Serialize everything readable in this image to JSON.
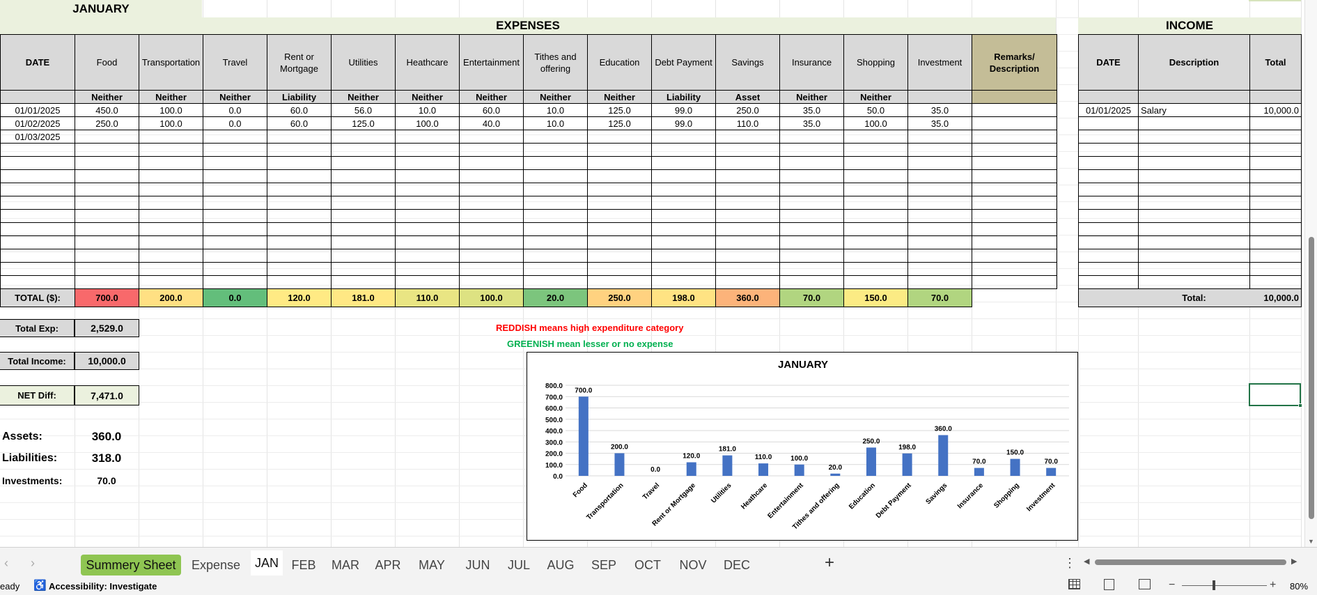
{
  "sheet": {
    "month_title": "JANUARY",
    "expenses_title": "EXPENSES",
    "income_title": "INCOME",
    "date_header": "DATE",
    "categories": [
      {
        "name": "Food",
        "class": "Neither",
        "total": "700.0",
        "color": "#f8696b"
      },
      {
        "name": "Transportation",
        "class": "Neither",
        "total": "200.0",
        "color": "#ffe083"
      },
      {
        "name": "Travel",
        "class": "Neither",
        "total": "0.0",
        "color": "#63be7b"
      },
      {
        "name": "Rent or Mortgage",
        "class": "Liability",
        "total": "120.0",
        "color": "#ffea84"
      },
      {
        "name": "Utilities",
        "class": "Neither",
        "total": "181.0",
        "color": "#ffe884"
      },
      {
        "name": "Heathcare",
        "class": "Neither",
        "total": "110.0",
        "color": "#e9e583"
      },
      {
        "name": "Entertainment",
        "class": "Neither",
        "total": "100.0",
        "color": "#dde282"
      },
      {
        "name": "Tithes and offering",
        "class": "Neither",
        "total": "20.0",
        "color": "#7cc57d"
      },
      {
        "name": "Education",
        "class": "Neither",
        "total": "250.0",
        "color": "#ffd280"
      },
      {
        "name": "Debt Payment",
        "class": "Liability",
        "total": "198.0",
        "color": "#ffe383"
      },
      {
        "name": "Savings",
        "class": "Asset",
        "total": "360.0",
        "color": "#fcb37a"
      },
      {
        "name": "Insurance",
        "class": "Neither",
        "total": "70.0",
        "color": "#b1d580"
      },
      {
        "name": "Shopping",
        "class": "Neither",
        "total": "150.0",
        "color": "#fbeb84"
      },
      {
        "name": "Investment",
        "class": "",
        "total": "70.0",
        "color": "#b1d580"
      }
    ],
    "remarks_header": "Remarks/ Description",
    "rows": [
      {
        "date": "01/01/2025",
        "values": [
          "450.0",
          "100.0",
          "0.0",
          "60.0",
          "56.0",
          "10.0",
          "60.0",
          "10.0",
          "125.0",
          "99.0",
          "250.0",
          "35.0",
          "50.0",
          "35.0"
        ]
      },
      {
        "date": "01/02/2025",
        "values": [
          "250.0",
          "100.0",
          "0.0",
          "60.0",
          "125.0",
          "100.0",
          "40.0",
          "10.0",
          "125.0",
          "99.0",
          "110.0",
          "35.0",
          "100.0",
          "35.0"
        ]
      },
      {
        "date": "01/03/2025",
        "values": [
          "",
          "",
          "",
          "",
          "",
          "",
          "",
          "",
          "",
          "",
          "",
          "",
          "",
          ""
        ]
      }
    ],
    "total_label": "TOTAL ($):",
    "income": {
      "headers": [
        "DATE",
        "Description",
        "Total"
      ],
      "rows": [
        {
          "date": "01/01/2025",
          "description": "Salary",
          "total": "10,000.0"
        }
      ],
      "total_label": "Total:",
      "total_value": "10,000.0"
    },
    "summary": {
      "total_exp_label": "Total Exp:",
      "total_exp_value": "2,529.0",
      "total_income_label": "Total Income:",
      "total_income_value": "10,000.0",
      "net_diff_label": "NET Diff:",
      "net_diff_value": "7,471.0",
      "assets_label": "Assets:",
      "assets_value": "360.0",
      "liabilities_label": "Liabilities:",
      "liabilities_value": "318.0",
      "investments_label": "Investments:",
      "investments_value": "70.0"
    },
    "legend": {
      "red_text": "REDDISH means high expenditure category",
      "green_text": "GREENISH mean lesser or no expense",
      "red_color": "#ff0000",
      "green_color": "#00b050"
    }
  },
  "chart_data": {
    "type": "bar",
    "title": "JANUARY",
    "categories": [
      "Food",
      "Transportation",
      "Travel",
      "Rent or Mortgage",
      "Utilities",
      "Heathcare",
      "Entertainment",
      "Tithes and offering",
      "Education",
      "Debt Payment",
      "Savings",
      "Insurance",
      "Shopping",
      "Investment"
    ],
    "values": [
      700,
      200,
      0,
      120,
      181,
      110,
      100,
      20,
      250,
      198,
      360,
      70,
      150,
      70
    ],
    "data_labels": [
      "700.0",
      "200.0",
      "0.0",
      "120.0",
      "181.0",
      "110.0",
      "100.0",
      "20.0",
      "250.0",
      "198.0",
      "360.0",
      "70.0",
      "150.0",
      "70.0"
    ],
    "y_ticks": [
      "800.0",
      "700.0",
      "600.0",
      "500.0",
      "400.0",
      "300.0",
      "200.0",
      "100.0",
      "0.0"
    ],
    "ylim": [
      0,
      800
    ],
    "grid": true,
    "bar_color": "#4472c4"
  },
  "tabs": {
    "items": [
      "Summery Sheet",
      "Expense",
      "JAN",
      "FEB",
      "MAR",
      "APR",
      "MAY",
      "JUN",
      "JUL",
      "AUG",
      "SEP",
      "OCT",
      "NOV",
      "DEC"
    ],
    "active": "JAN",
    "highlight": "Summery Sheet",
    "add_label": "+"
  },
  "status": {
    "ready": "eady",
    "accessibility": "Accessibility: Investigate",
    "zoom": "80%"
  }
}
